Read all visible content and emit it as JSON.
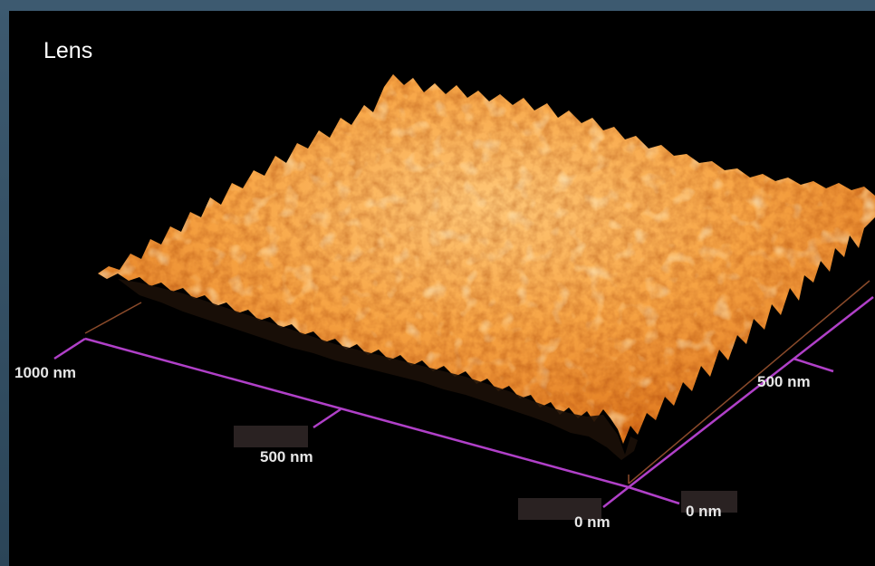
{
  "panel": {
    "title": "Lens"
  },
  "axes": {
    "y_tick_far": "1000 nm",
    "y_tick_mid": "500 nm",
    "y_tick_near": "0 nm",
    "x_tick_near": "0 nm",
    "x_tick_mid": "500 nm"
  },
  "colors": {
    "surface": "#f2922a",
    "surface_highlight": "#ffc978",
    "axis": "#b040c8",
    "box_edge": "#8a4a2a"
  }
}
